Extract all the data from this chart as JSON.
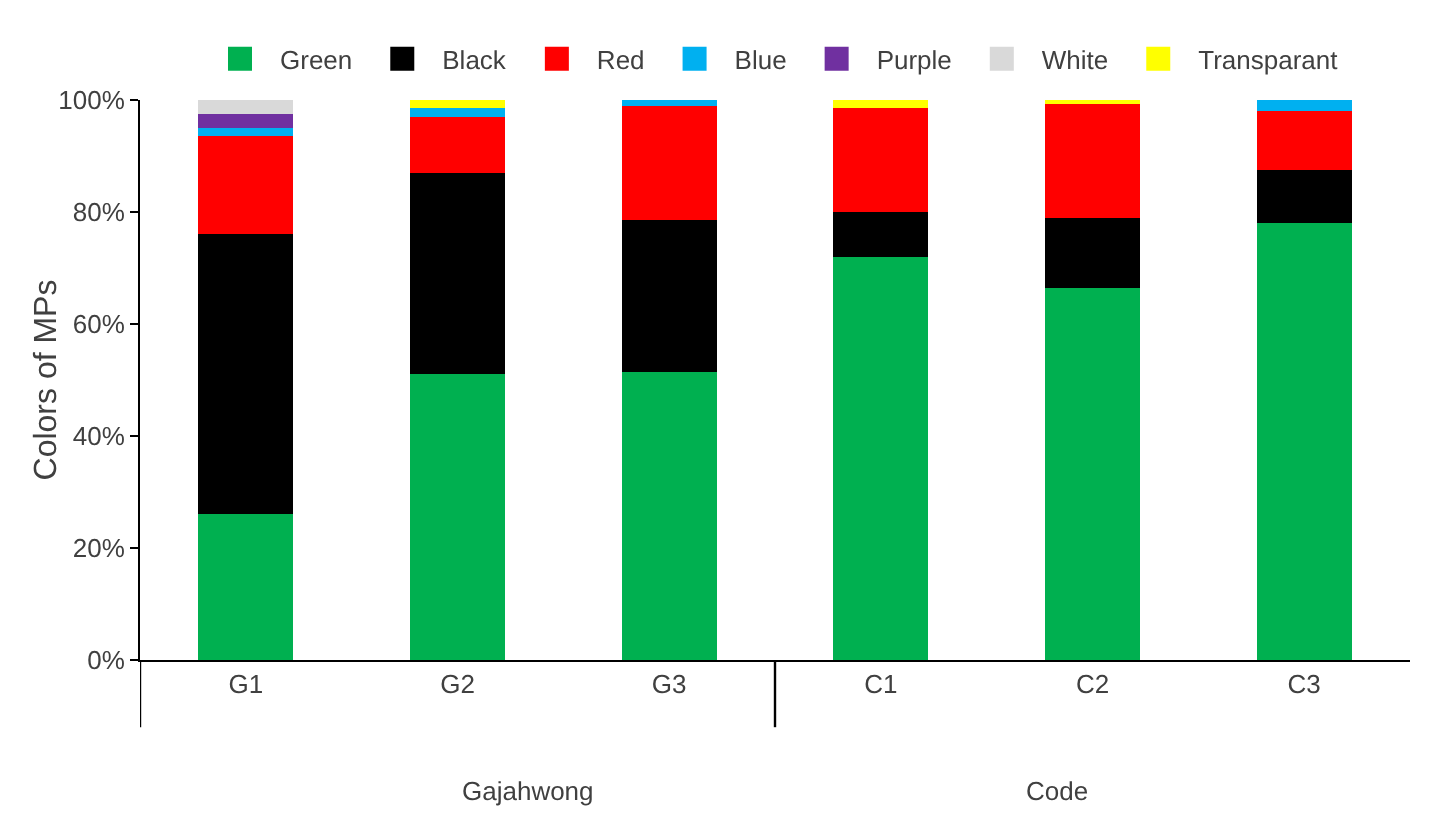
{
  "chart_data": {
    "type": "bar",
    "stacked": true,
    "ylabel": "Colors of MPs",
    "categories": [
      "G1",
      "G2",
      "G3",
      "C1",
      "C2",
      "C3"
    ],
    "series": [
      {
        "name": "Green",
        "color": "#00b050",
        "values": [
          26,
          51,
          51.5,
          72,
          66.5,
          78
        ]
      },
      {
        "name": "Black",
        "color": "#000000",
        "values": [
          50,
          36,
          27,
          8,
          12.5,
          9.5
        ]
      },
      {
        "name": "Red",
        "color": "#ff0000",
        "values": [
          17.5,
          10,
          20.5,
          18.5,
          20.5,
          10.5
        ]
      },
      {
        "name": "Blue",
        "color": "#00b0f0",
        "values": [
          1.5,
          1.5,
          1,
          0,
          0,
          2
        ]
      },
      {
        "name": "Purple",
        "color": "#7030a0",
        "values": [
          2.5,
          0,
          0,
          0,
          0,
          0
        ]
      },
      {
        "name": "White",
        "color": "#d9d9d9",
        "values": [
          2.5,
          0,
          0,
          0,
          0,
          0
        ]
      },
      {
        "name": "Transparant",
        "color": "#ffff00",
        "values": [
          0,
          1.5,
          0,
          1.5,
          0.5,
          0
        ]
      }
    ],
    "ylim": [
      0,
      100
    ],
    "yticks": [
      {
        "value": 0,
        "label": "0%"
      },
      {
        "value": 20,
        "label": "20%"
      },
      {
        "value": 40,
        "label": "40%"
      },
      {
        "value": 60,
        "label": "60%"
      },
      {
        "value": 80,
        "label": "80%"
      },
      {
        "value": 100,
        "label": "100%"
      }
    ],
    "annotations": [
      "Gajahwong",
      "Code"
    ],
    "grid": false,
    "legend": "top"
  }
}
